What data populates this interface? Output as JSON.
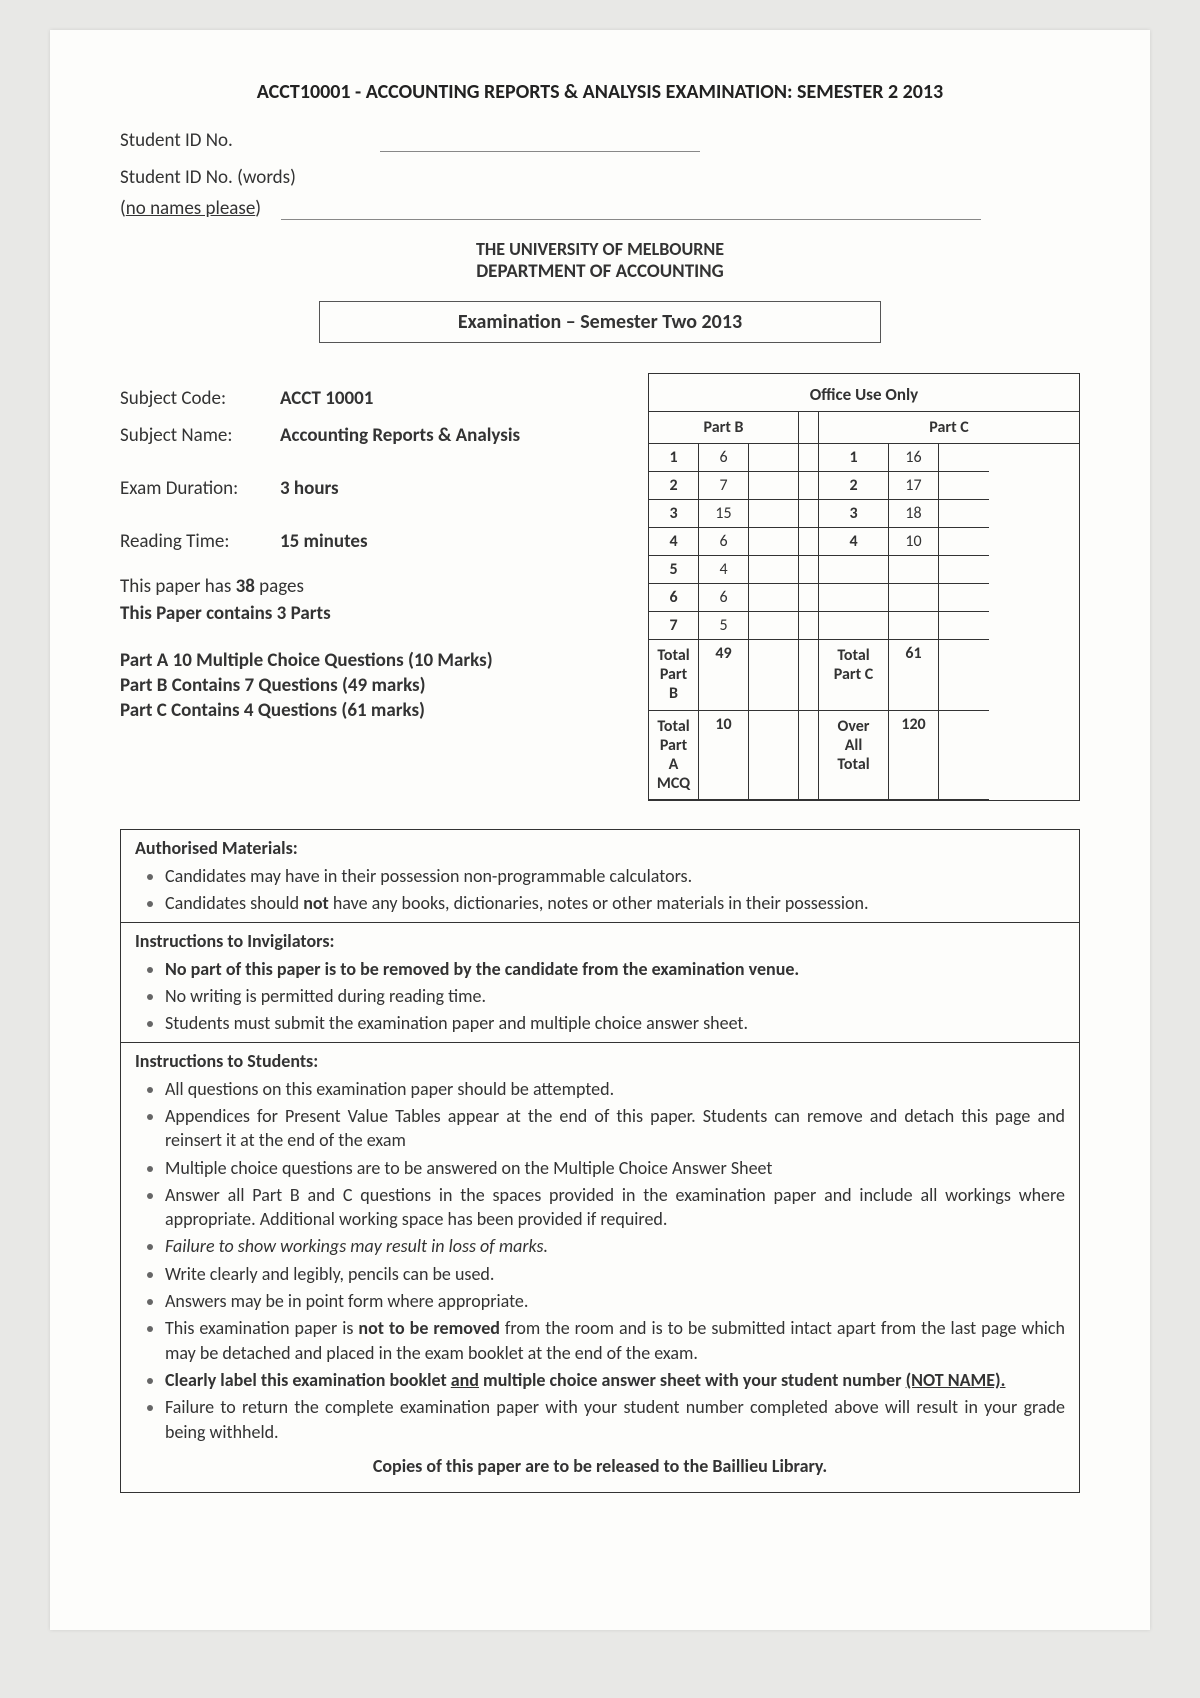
{
  "header": {
    "title": "ACCT10001 - ACCOUNTING REPORTS & ANALYSIS EXAMINATION:  SEMESTER 2 2013",
    "student_id_label": "Student ID No.",
    "student_id_words_label": "Student ID No. (words)",
    "no_names": "(no names please)",
    "university": "THE UNIVERSITY OF MELBOURNE",
    "department": "DEPARTMENT OF ACCOUNTING",
    "exam_box": "Examination – Semester Two 2013"
  },
  "info": {
    "subject_code_label": "Subject Code:",
    "subject_code": "ACCT 10001",
    "subject_name_label": "Subject Name:",
    "subject_name": "Accounting Reports & Analysis",
    "exam_duration_label": "Exam Duration:",
    "exam_duration": "3 hours",
    "reading_time_label": "Reading Time:",
    "reading_time": "15 minutes",
    "pages_prefix": "This paper has ",
    "pages_count": "38",
    "pages_suffix": " pages",
    "parts_line": "This Paper contains 3 Parts",
    "part_a": "Part A   10 Multiple Choice Questions (10 Marks)",
    "part_b": "Part B   Contains 7 Questions (49 marks)",
    "part_c": "Part C   Contains 4 Questions (61 marks)"
  },
  "office": {
    "title": "Office Use Only",
    "part_b_label": "Part B",
    "part_c_label": "Part C",
    "part_b_rows": [
      {
        "q": "1",
        "m": "6"
      },
      {
        "q": "2",
        "m": "7"
      },
      {
        "q": "3",
        "m": "15"
      },
      {
        "q": "4",
        "m": "6"
      },
      {
        "q": "5",
        "m": "4"
      },
      {
        "q": "6",
        "m": "6"
      },
      {
        "q": "7",
        "m": "5"
      }
    ],
    "part_c_rows": [
      {
        "q": "1",
        "m": "16"
      },
      {
        "q": "2",
        "m": "17"
      },
      {
        "q": "3",
        "m": "18"
      },
      {
        "q": "4",
        "m": "10"
      },
      {
        "q": "",
        "m": ""
      },
      {
        "q": "",
        "m": ""
      },
      {
        "q": "",
        "m": ""
      }
    ],
    "total_b_label": "Total Part B",
    "total_b": "49",
    "total_c_label": "Total Part C",
    "total_c": "61",
    "total_a_label": "Total Part A MCQ",
    "total_a": "10",
    "overall_label": "Over All Total",
    "overall": "120"
  },
  "instructions": {
    "auth_heading": "Authorised Materials:",
    "auth_items": [
      "Candidates may have in their possession non-programmable calculators.",
      "Candidates should not have any books, dictionaries, notes or other materials in their possession."
    ],
    "invig_heading": "Instructions to Invigilators:",
    "invig_items": [
      "No part of this paper is to be removed by the candidate from the examination venue.",
      "No writing is permitted during reading time.",
      "Students must submit the examination paper and multiple choice answer sheet."
    ],
    "student_heading": "Instructions to Students:",
    "student_items": [
      "All questions on this examination paper should be attempted.",
      "Appendices for Present Value Tables appear at the end of this paper. Students can remove and detach this page and reinsert it at the end of the exam",
      "Multiple choice questions are to be answered on the Multiple Choice Answer Sheet",
      "Answer all Part B and C questions in the spaces provided in the examination paper and include all workings where appropriate. Additional working space has been provided if required.",
      "Failure to show workings may result in loss of marks.",
      "Write clearly and legibly, pencils can be used.",
      "Answers may be in point form where appropriate.",
      "This examination paper is not to be removed from the room and is to be submitted intact apart from the last page which may be detached and placed in the exam booklet at the end of the exam.",
      "Clearly label this examination booklet and multiple choice answer sheet with your student number (NOT NAME).",
      "Failure to return the complete examination paper with your student number completed above will result in your grade being withheld."
    ],
    "release": "Copies of this paper are to be released to the Baillieu Library."
  }
}
